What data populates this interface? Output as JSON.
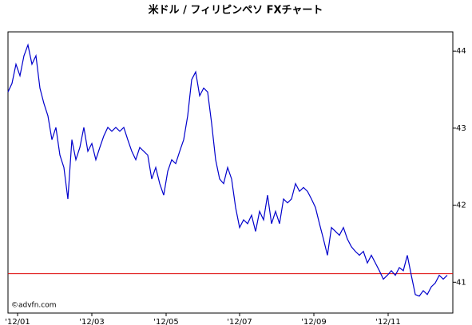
{
  "chart_data": {
    "type": "line",
    "title": "米ドル / フィリピンペソ FXチャート",
    "watermark": "©advfn.com",
    "series": [
      {
        "color": "#0000cc",
        "values": [
          43.47,
          43.58,
          43.83,
          43.68,
          43.94,
          44.08,
          43.83,
          43.94,
          43.52,
          43.32,
          43.16,
          42.85,
          43.01,
          42.65,
          42.49,
          42.08,
          42.85,
          42.59,
          42.75,
          43.01,
          42.7,
          42.8,
          42.59,
          42.75,
          42.9,
          43.01,
          42.96,
          43.01,
          42.96,
          43.01,
          42.85,
          42.7,
          42.59,
          42.75,
          42.7,
          42.65,
          42.34,
          42.49,
          42.28,
          42.13,
          42.44,
          42.59,
          42.54,
          42.7,
          42.85,
          43.16,
          43.63,
          43.73,
          43.42,
          43.52,
          43.47,
          43.06,
          42.59,
          42.34,
          42.28,
          42.49,
          42.34,
          41.97,
          41.71,
          41.81,
          41.76,
          41.87,
          41.66,
          41.92,
          41.81,
          42.13,
          41.76,
          41.92,
          41.76,
          42.08,
          42.03,
          42.08,
          42.28,
          42.18,
          42.23,
          42.18,
          42.08,
          41.97,
          41.76,
          41.56,
          41.35,
          41.71,
          41.66,
          41.61,
          41.71,
          41.56,
          41.46,
          41.4,
          41.35,
          41.4,
          41.25,
          41.35,
          41.25,
          41.15,
          41.04,
          41.09,
          41.15,
          41.09,
          41.19,
          41.15,
          41.35,
          41.09,
          40.84,
          40.82,
          40.89,
          40.84,
          40.94,
          40.99,
          41.09,
          41.04,
          41.09
        ]
      }
    ],
    "reference_line": {
      "value": 41.11,
      "color": "#dd0000"
    },
    "xlim": [
      0,
      111.4
    ],
    "xticks": [
      {
        "value": 2.4,
        "label": "'12/01"
      },
      {
        "value": 21,
        "label": "'12/03"
      },
      {
        "value": 39.6,
        "label": "'12/05"
      },
      {
        "value": 58,
        "label": "'12/07"
      },
      {
        "value": 76.6,
        "label": "'12/09"
      },
      {
        "value": 95.2,
        "label": "'12/11"
      }
    ],
    "ylim": [
      40.6,
      44.25
    ],
    "yticks": [
      41,
      42,
      43,
      44
    ]
  }
}
